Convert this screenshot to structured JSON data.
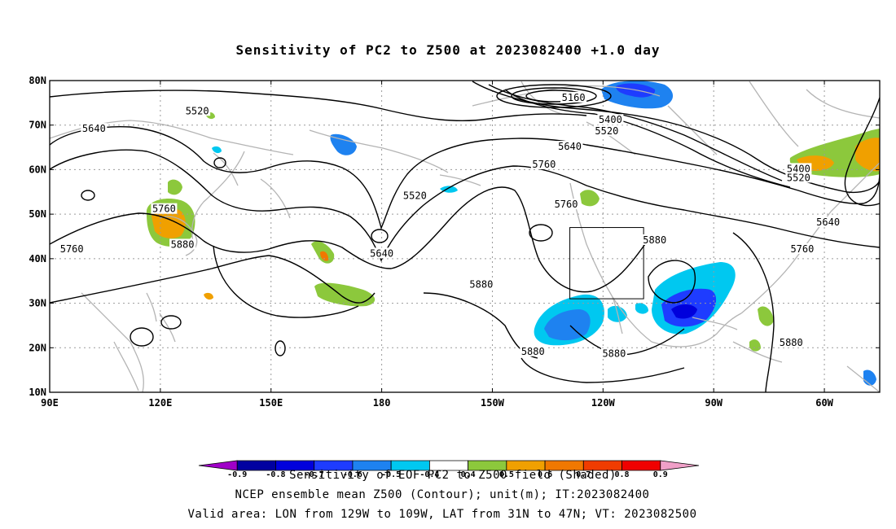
{
  "title": "Sensitivity of PC2 to Z500 at 2023082400 +1.0 day",
  "map": {
    "lon_ticks": [
      "90E",
      "120E",
      "150E",
      "180",
      "150W",
      "120W",
      "90W",
      "60W"
    ],
    "lat_ticks": [
      "80N",
      "70N",
      "60N",
      "50N",
      "40N",
      "30N",
      "20N",
      "10N"
    ],
    "lon_range_deg_east": [
      90,
      315
    ],
    "lat_range_deg": [
      10,
      80
    ],
    "grid": "dotted",
    "box": {
      "lon_west": -129,
      "lon_east": -109,
      "lat_south": 31,
      "lat_north": 47
    }
  },
  "contour_labels": [
    {
      "text": "5520",
      "lon": 130,
      "lat": 73
    },
    {
      "text": "5640",
      "lon": 102,
      "lat": 69
    },
    {
      "text": "5520",
      "lon": -171,
      "lat": 54
    },
    {
      "text": "5160",
      "lon": -128,
      "lat": 76
    },
    {
      "text": "5400",
      "lon": -118,
      "lat": 71
    },
    {
      "text": "5520",
      "lon": -119,
      "lat": 68.5
    },
    {
      "text": "5640",
      "lon": -129,
      "lat": 65
    },
    {
      "text": "5760",
      "lon": -136,
      "lat": 61
    },
    {
      "text": "5760",
      "lon": -130,
      "lat": 52
    },
    {
      "text": "5760",
      "lon": 121,
      "lat": 51
    },
    {
      "text": "5880",
      "lon": 126,
      "lat": 43
    },
    {
      "text": "5760",
      "lon": 96,
      "lat": 42
    },
    {
      "text": "5640",
      "lon": -180,
      "lat": 41
    },
    {
      "text": "5880",
      "lon": -106,
      "lat": 44
    },
    {
      "text": "5400",
      "lon": -67,
      "lat": 60
    },
    {
      "text": "5520",
      "lon": -67,
      "lat": 58
    },
    {
      "text": "5640",
      "lon": -59,
      "lat": 48
    },
    {
      "text": "5760",
      "lon": -66,
      "lat": 42
    },
    {
      "text": "5880",
      "lon": -153,
      "lat": 34
    },
    {
      "text": "5880",
      "lon": -139,
      "lat": 19
    },
    {
      "text": "5880",
      "lon": -117,
      "lat": 18.5
    },
    {
      "text": "5880",
      "lon": -69,
      "lat": 21
    }
  ],
  "colorbar": {
    "labels": [
      "-0.9",
      "-0.8",
      "-0.7",
      "-0.6",
      "-0.5",
      "-0.4",
      "0.4",
      "0.5",
      "0.6",
      "0.7",
      "0.8",
      "0.9"
    ],
    "colors": [
      "#a000c8",
      "#0000a0",
      "#0000dc",
      "#1e3cff",
      "#1e82f0",
      "#00c8f0",
      "#ffffff",
      "#8cc83c",
      "#f0a000",
      "#f07800",
      "#f03c00",
      "#f00000",
      "#f0a0c8"
    ]
  },
  "footer": [
    "Sensitivity of EOF PC2 to Z500 field (Shaded)",
    "NCEP ensemble mean Z500 (Contour); unit(m); IT:2023082400",
    "Valid area: LON from 129W to 109W, LAT from 31N to 47N; VT: 2023082500"
  ]
}
